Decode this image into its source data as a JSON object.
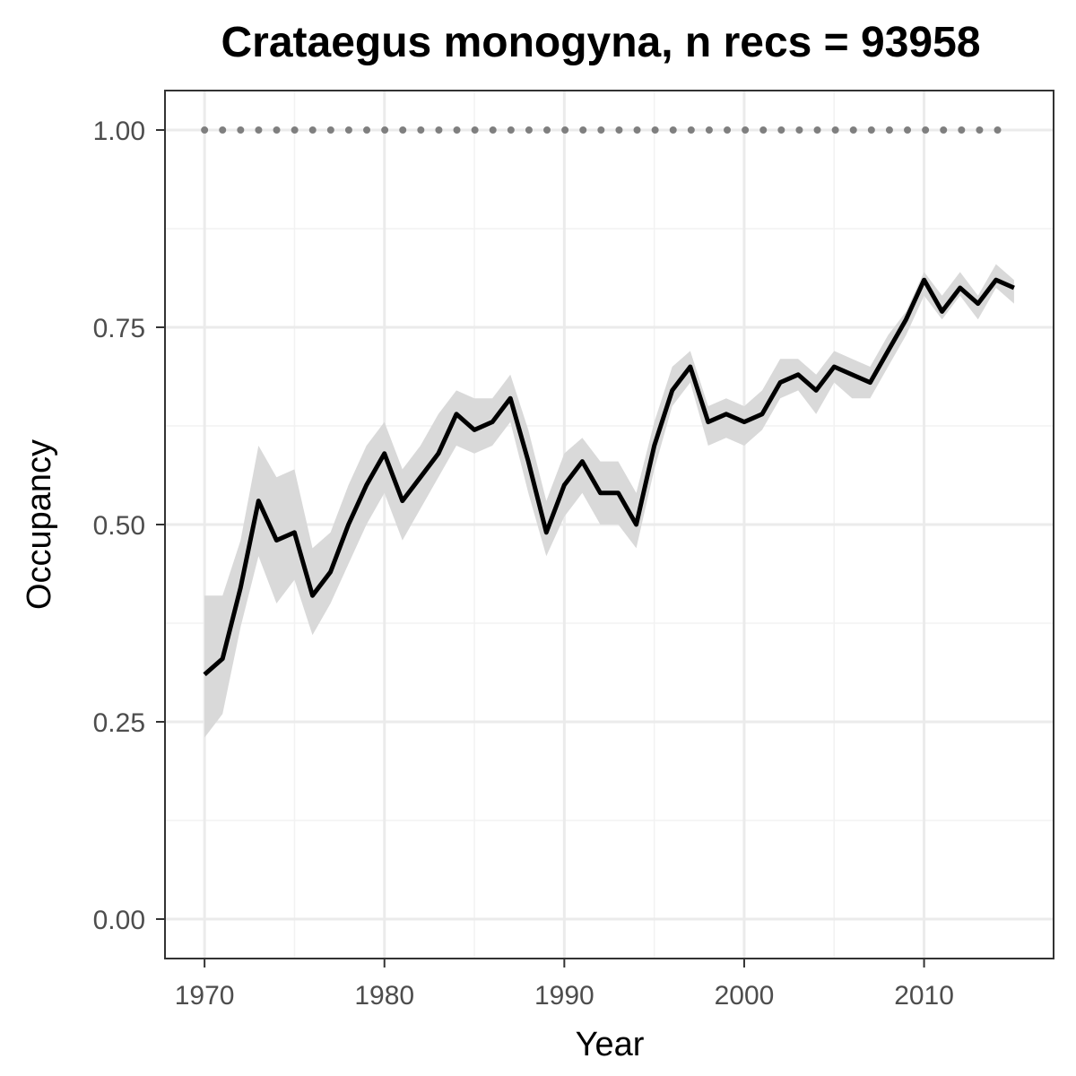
{
  "chart_data": {
    "type": "line",
    "title": "Crataegus monogyna, n recs = 93958",
    "xlabel": "Year",
    "ylabel": "Occupancy",
    "xlim": [
      1967.8,
      2017.2
    ],
    "ylim": [
      -0.05,
      1.05
    ],
    "x_ticks": [
      1970,
      1980,
      1990,
      2000,
      2010
    ],
    "y_ticks": [
      0.0,
      0.25,
      0.5,
      0.75,
      1.0
    ],
    "x_tick_labels": [
      "1970",
      "1980",
      "1990",
      "2000",
      "2010"
    ],
    "y_tick_labels": [
      "0.00",
      "0.25",
      "0.50",
      "0.75",
      "1.00"
    ],
    "grid": true,
    "legend": "none",
    "series": [
      {
        "kind": "line-with-ribbon",
        "color": "#000000",
        "ribbon_color": "#d9d9d9",
        "x": [
          1970,
          1971,
          1972,
          1973,
          1974,
          1975,
          1976,
          1977,
          1978,
          1979,
          1980,
          1981,
          1982,
          1983,
          1984,
          1985,
          1986,
          1987,
          1988,
          1989,
          1990,
          1991,
          1992,
          1993,
          1994,
          1995,
          1996,
          1997,
          1998,
          1999,
          2000,
          2001,
          2002,
          2003,
          2004,
          2005,
          2006,
          2007,
          2008,
          2009,
          2010,
          2011,
          2012,
          2013,
          2014,
          2015
        ],
        "values": [
          0.31,
          0.33,
          0.42,
          0.53,
          0.48,
          0.49,
          0.41,
          0.44,
          0.5,
          0.55,
          0.59,
          0.53,
          0.56,
          0.59,
          0.64,
          0.62,
          0.63,
          0.66,
          0.58,
          0.49,
          0.55,
          0.58,
          0.54,
          0.54,
          0.5,
          0.6,
          0.67,
          0.7,
          0.63,
          0.64,
          0.63,
          0.64,
          0.68,
          0.69,
          0.67,
          0.7,
          0.69,
          0.68,
          0.72,
          0.76,
          0.81,
          0.77,
          0.8,
          0.78,
          0.81,
          0.8
        ],
        "lower": [
          0.23,
          0.26,
          0.37,
          0.46,
          0.4,
          0.43,
          0.36,
          0.4,
          0.45,
          0.5,
          0.54,
          0.48,
          0.52,
          0.56,
          0.6,
          0.59,
          0.6,
          0.63,
          0.54,
          0.46,
          0.51,
          0.54,
          0.5,
          0.5,
          0.47,
          0.57,
          0.65,
          0.68,
          0.6,
          0.61,
          0.6,
          0.62,
          0.66,
          0.67,
          0.64,
          0.68,
          0.66,
          0.66,
          0.7,
          0.74,
          0.79,
          0.76,
          0.79,
          0.76,
          0.8,
          0.78
        ],
        "upper": [
          0.41,
          0.41,
          0.48,
          0.6,
          0.56,
          0.57,
          0.47,
          0.49,
          0.55,
          0.6,
          0.63,
          0.57,
          0.6,
          0.64,
          0.67,
          0.66,
          0.66,
          0.69,
          0.62,
          0.53,
          0.59,
          0.61,
          0.58,
          0.58,
          0.54,
          0.63,
          0.7,
          0.72,
          0.65,
          0.66,
          0.65,
          0.67,
          0.71,
          0.71,
          0.69,
          0.72,
          0.71,
          0.7,
          0.74,
          0.77,
          0.82,
          0.79,
          0.82,
          0.79,
          0.83,
          0.81
        ]
      },
      {
        "kind": "dotted-line",
        "color": "#7f7f7f",
        "x": [
          1970,
          2015
        ],
        "values": [
          1.0,
          1.0
        ]
      }
    ]
  }
}
